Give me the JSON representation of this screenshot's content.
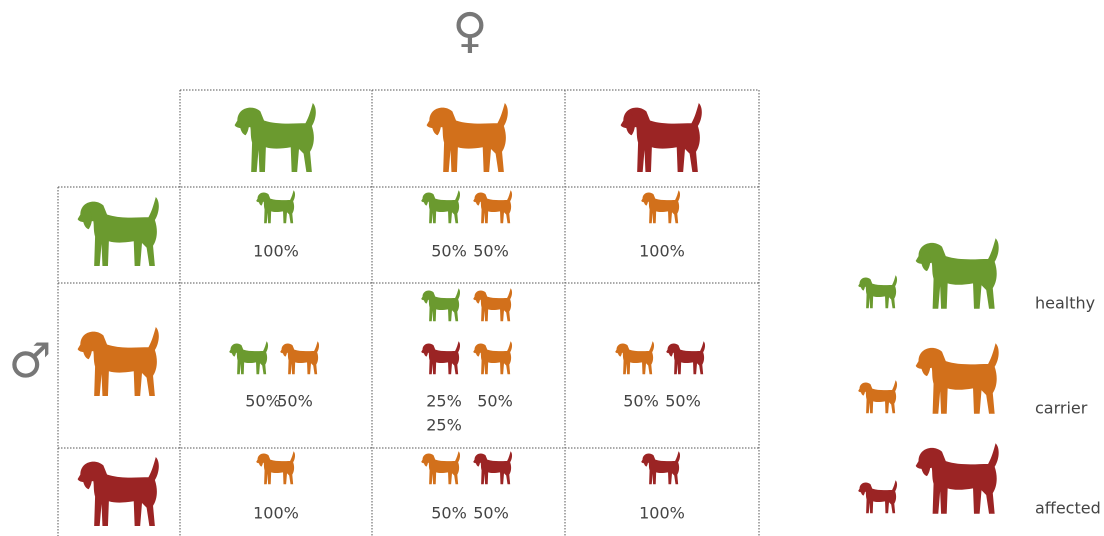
{
  "symbols": {
    "female": "♀",
    "male": "♂"
  },
  "cells": [
    [
      [
        "100%"
      ],
      [
        "50%",
        "50%"
      ],
      [
        "100%"
      ]
    ],
    [
      [
        "50%",
        "50%"
      ],
      [
        "25%",
        "50%",
        "25%"
      ],
      [
        "50%",
        "50%"
      ]
    ],
    [
      [
        "100%"
      ],
      [
        "50%",
        "50%"
      ],
      [
        "100%"
      ]
    ]
  ],
  "legend": [
    "healthy",
    "carrier",
    "affected"
  ]
}
